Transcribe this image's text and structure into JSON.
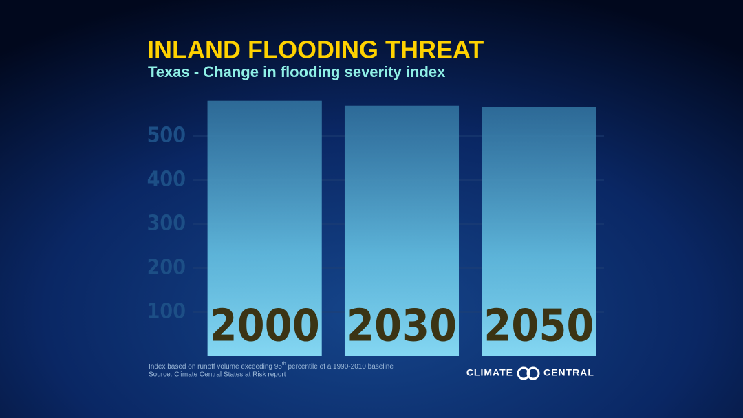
{
  "chart_data": {
    "type": "bar",
    "title": "INLAND FLOODING THREAT",
    "subtitle": "Texas - Change in flooding severity index",
    "categories": [
      "2000",
      "2030",
      "2050"
    ],
    "values": [
      580,
      569,
      566
    ],
    "color": "#6fd0f0",
    "ylim": [
      0,
      600
    ],
    "yticks": [
      100,
      200,
      300,
      400,
      500
    ],
    "grid": true,
    "note": [
      "Index based on runoff volume exceeding 95",
      "th",
      " percentile of a 1990-2010 baseline"
    ],
    "source": "Source:  Climate Central States at Risk report",
    "logo": [
      "CLIMATE",
      "CENTRAL"
    ]
  }
}
